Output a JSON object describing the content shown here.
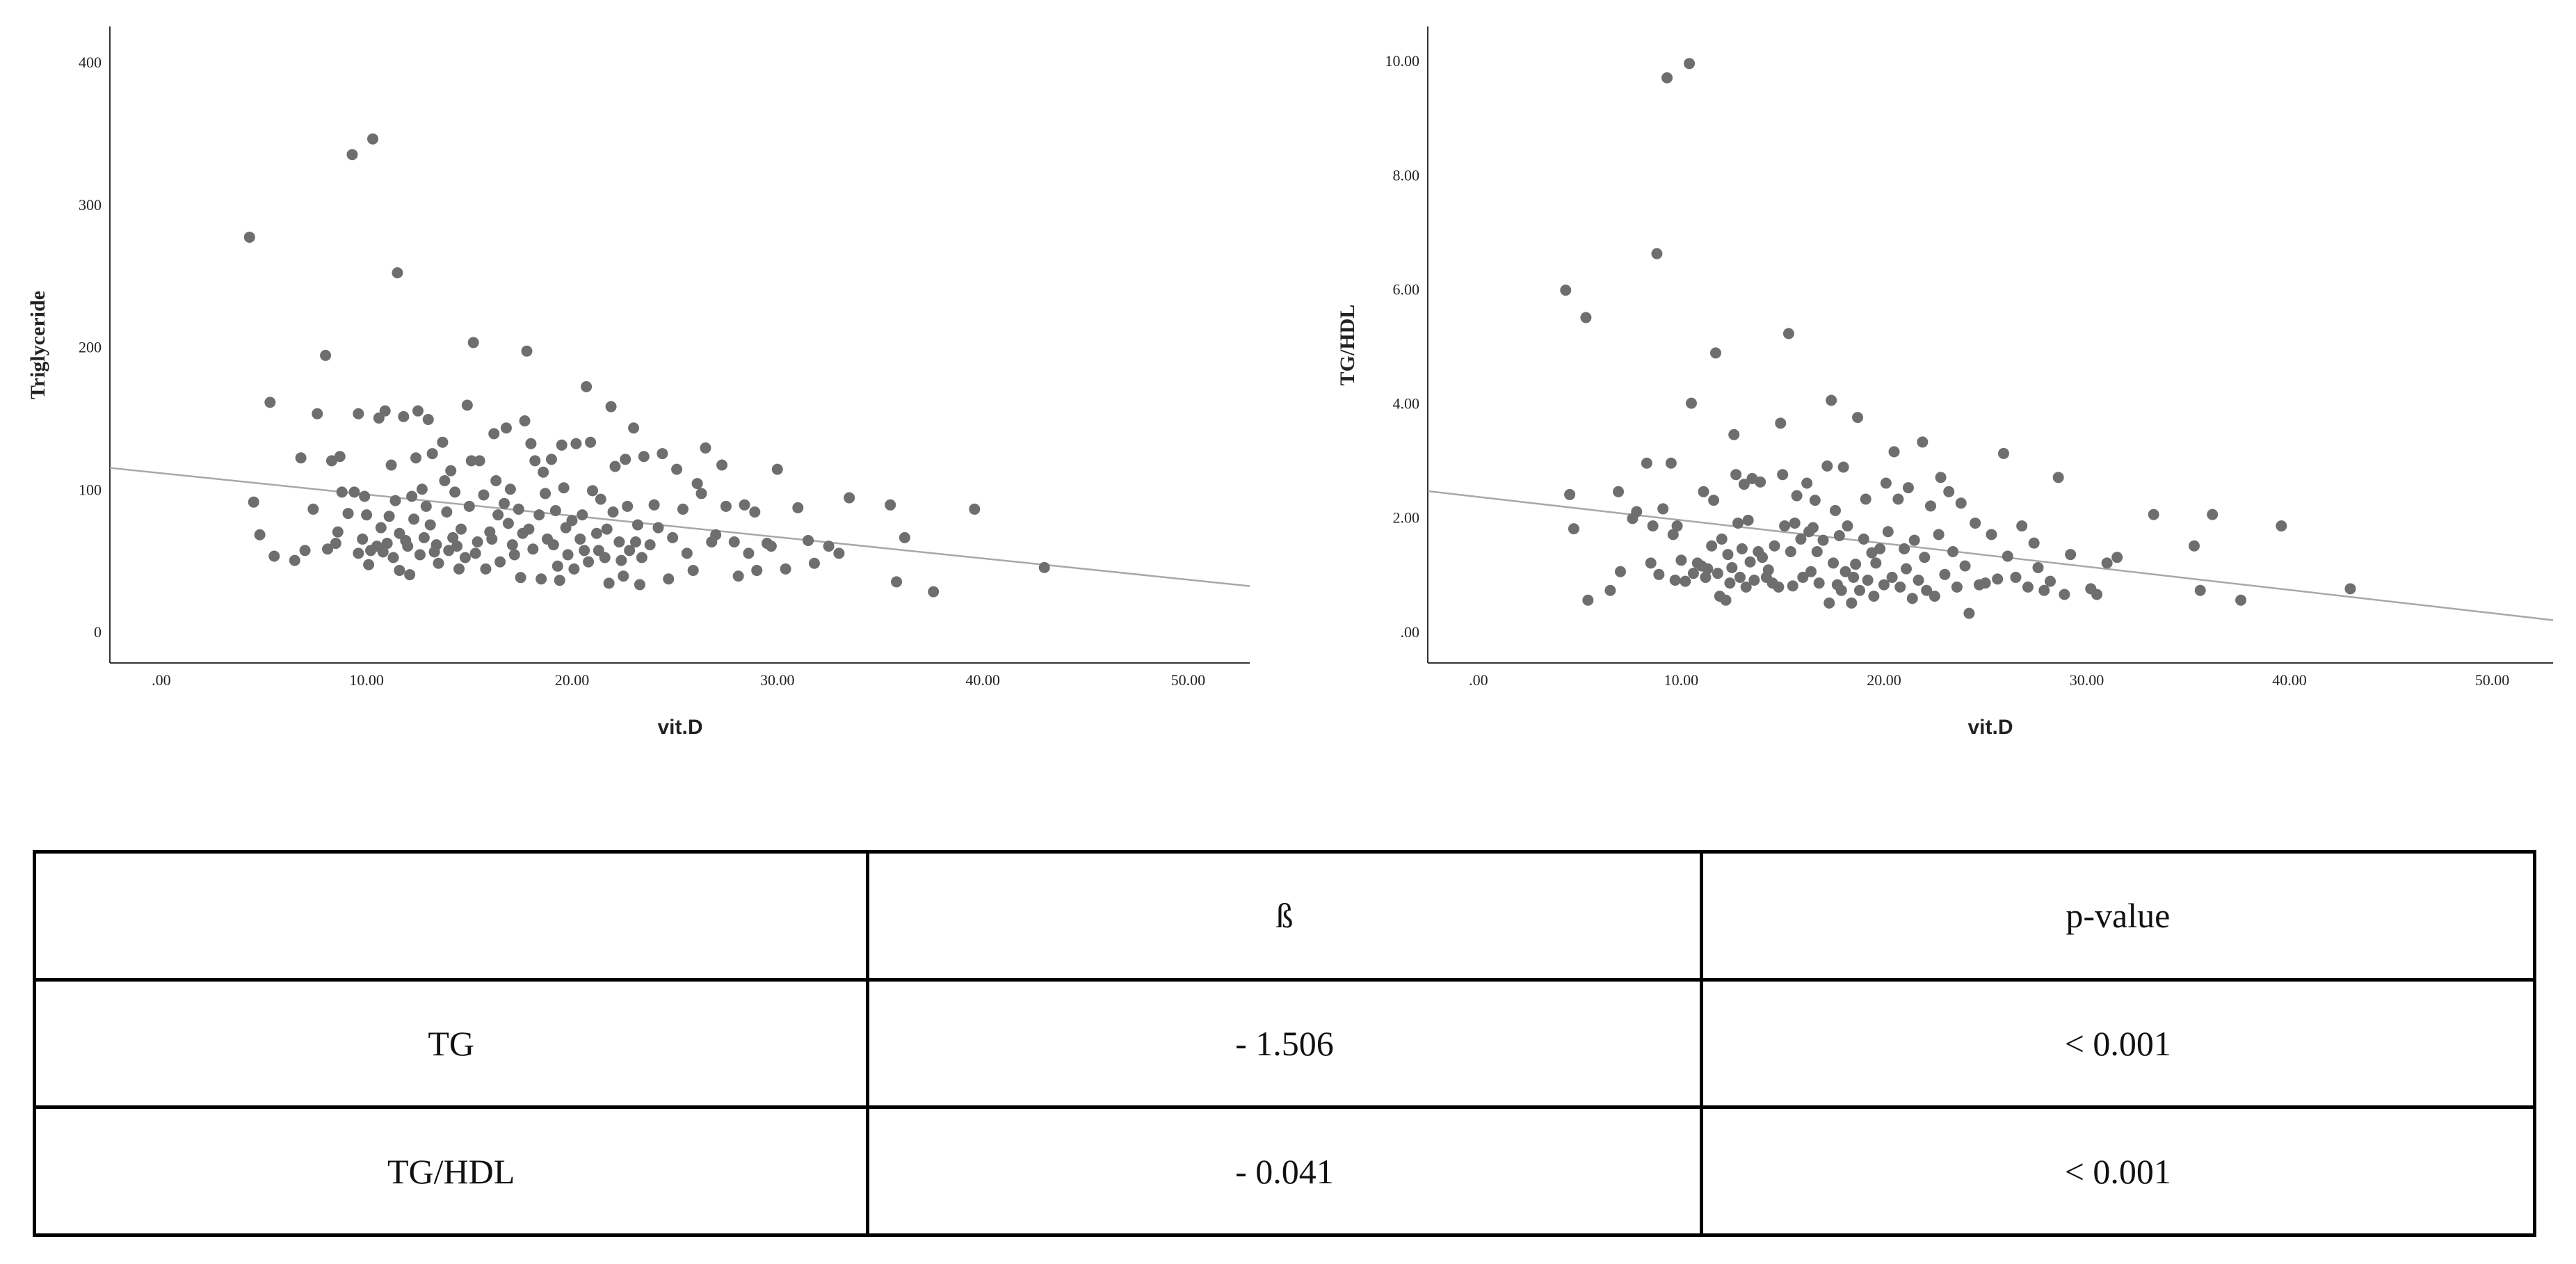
{
  "chart_data": [
    {
      "type": "scatter",
      "xlabel": "vit.D",
      "ylabel": "Triglyceride",
      "xlim": [
        -2.5,
        53
      ],
      "ylim": [
        -22,
        425
      ],
      "x_ticks": [
        ".00",
        "10.00",
        "20.00",
        "30.00",
        "40.00",
        "50.00"
      ],
      "x_tick_values": [
        0,
        10,
        20,
        30,
        40,
        50
      ],
      "y_ticks": [
        "0",
        "100",
        "200",
        "300",
        "400"
      ],
      "y_tick_values": [
        0,
        100,
        200,
        300,
        400
      ],
      "grid": false,
      "point_color": "#6e6e6e",
      "line_color": "#a8a8a8",
      "fit_line": {
        "x": [
          -2.5,
          53
        ],
        "y": [
          115,
          32
        ]
      },
      "points": [
        [
          4.3,
          277
        ],
        [
          4.5,
          91
        ],
        [
          4.8,
          68
        ],
        [
          5.3,
          161
        ],
        [
          5.5,
          53
        ],
        [
          6.5,
          50
        ],
        [
          6.8,
          122
        ],
        [
          7,
          57
        ],
        [
          7.4,
          86
        ],
        [
          7.6,
          153
        ],
        [
          8,
          194
        ],
        [
          8.1,
          58
        ],
        [
          8.3,
          120
        ],
        [
          8.5,
          62
        ],
        [
          8.6,
          70
        ],
        [
          8.7,
          123
        ],
        [
          8.8,
          98
        ],
        [
          9.1,
          83
        ],
        [
          9.3,
          335
        ],
        [
          9.4,
          98
        ],
        [
          9.6,
          153
        ],
        [
          9.6,
          55
        ],
        [
          9.8,
          65
        ],
        [
          9.9,
          95
        ],
        [
          10,
          82
        ],
        [
          10.1,
          47
        ],
        [
          10.2,
          57
        ],
        [
          10.3,
          346
        ],
        [
          10.5,
          60
        ],
        [
          10.6,
          150
        ],
        [
          10.7,
          73
        ],
        [
          10.8,
          56
        ],
        [
          10.9,
          155
        ],
        [
          11,
          62
        ],
        [
          11.1,
          81
        ],
        [
          11.2,
          117
        ],
        [
          11.3,
          52
        ],
        [
          11.4,
          92
        ],
        [
          11.5,
          252
        ],
        [
          11.6,
          43
        ],
        [
          11.6,
          69
        ],
        [
          11.8,
          151
        ],
        [
          11.9,
          64
        ],
        [
          12,
          60
        ],
        [
          12.1,
          40
        ],
        [
          12.2,
          95
        ],
        [
          12.3,
          79
        ],
        [
          12.4,
          122
        ],
        [
          12.5,
          155
        ],
        [
          12.6,
          54
        ],
        [
          12.7,
          100
        ],
        [
          12.8,
          66
        ],
        [
          12.9,
          88
        ],
        [
          13,
          149
        ],
        [
          13.1,
          75
        ],
        [
          13.2,
          125
        ],
        [
          13.3,
          56
        ],
        [
          13.4,
          61
        ],
        [
          13.5,
          48
        ],
        [
          13.7,
          133
        ],
        [
          13.8,
          106
        ],
        [
          13.9,
          84
        ],
        [
          14,
          57
        ],
        [
          14.1,
          113
        ],
        [
          14.2,
          66
        ],
        [
          14.3,
          98
        ],
        [
          14.4,
          60
        ],
        [
          14.5,
          44
        ],
        [
          14.6,
          72
        ],
        [
          14.8,
          52
        ],
        [
          14.9,
          159
        ],
        [
          15,
          88
        ],
        [
          15.1,
          120
        ],
        [
          15.2,
          203
        ],
        [
          15.3,
          55
        ],
        [
          15.4,
          63
        ],
        [
          15.5,
          120
        ],
        [
          15.7,
          96
        ],
        [
          15.8,
          44
        ],
        [
          16,
          70
        ],
        [
          16.1,
          65
        ],
        [
          16.2,
          139
        ],
        [
          16.3,
          106
        ],
        [
          16.4,
          82
        ],
        [
          16.5,
          49
        ],
        [
          16.7,
          90
        ],
        [
          16.8,
          143
        ],
        [
          16.9,
          76
        ],
        [
          17,
          100
        ],
        [
          17.1,
          61
        ],
        [
          17.2,
          54
        ],
        [
          17.4,
          86
        ],
        [
          17.5,
          38
        ],
        [
          17.6,
          69
        ],
        [
          17.7,
          148
        ],
        [
          17.8,
          197
        ],
        [
          17.9,
          72
        ],
        [
          18,
          132
        ],
        [
          18.1,
          58
        ],
        [
          18.2,
          120
        ],
        [
          18.4,
          82
        ],
        [
          18.5,
          37
        ],
        [
          18.6,
          112
        ],
        [
          18.7,
          97
        ],
        [
          18.8,
          65
        ],
        [
          19,
          121
        ],
        [
          19.1,
          61
        ],
        [
          19.2,
          85
        ],
        [
          19.3,
          46
        ],
        [
          19.4,
          36
        ],
        [
          19.5,
          131
        ],
        [
          19.6,
          101
        ],
        [
          19.7,
          73
        ],
        [
          19.8,
          54
        ],
        [
          20,
          78
        ],
        [
          20.1,
          44
        ],
        [
          20.2,
          132
        ],
        [
          20.4,
          65
        ],
        [
          20.5,
          82
        ],
        [
          20.6,
          57
        ],
        [
          20.7,
          172
        ],
        [
          20.8,
          49
        ],
        [
          20.9,
          133
        ],
        [
          21,
          99
        ],
        [
          21.2,
          69
        ],
        [
          21.3,
          57
        ],
        [
          21.4,
          93
        ],
        [
          21.6,
          52
        ],
        [
          21.7,
          72
        ],
        [
          21.8,
          34
        ],
        [
          21.9,
          158
        ],
        [
          22,
          84
        ],
        [
          22.1,
          116
        ],
        [
          22.3,
          63
        ],
        [
          22.4,
          50
        ],
        [
          22.5,
          39
        ],
        [
          22.6,
          121
        ],
        [
          22.7,
          88
        ],
        [
          22.8,
          57
        ],
        [
          23,
          143
        ],
        [
          23.1,
          63
        ],
        [
          23.2,
          75
        ],
        [
          23.3,
          33
        ],
        [
          23.4,
          52
        ],
        [
          23.5,
          123
        ],
        [
          23.8,
          61
        ],
        [
          24,
          89
        ],
        [
          24.2,
          73
        ],
        [
          24.4,
          125
        ],
        [
          24.7,
          37
        ],
        [
          24.9,
          66
        ],
        [
          25.1,
          114
        ],
        [
          25.4,
          86
        ],
        [
          25.6,
          55
        ],
        [
          25.9,
          43
        ],
        [
          26.1,
          104
        ],
        [
          26.3,
          97
        ],
        [
          26.5,
          129
        ],
        [
          26.8,
          63
        ],
        [
          27,
          68
        ],
        [
          27.3,
          117
        ],
        [
          27.5,
          88
        ],
        [
          27.9,
          63
        ],
        [
          28.1,
          39
        ],
        [
          28.4,
          89
        ],
        [
          28.6,
          55
        ],
        [
          28.9,
          84
        ],
        [
          29,
          43
        ],
        [
          29.5,
          62
        ],
        [
          29.7,
          60
        ],
        [
          30,
          114
        ],
        [
          30.4,
          44
        ],
        [
          31,
          87
        ],
        [
          31.5,
          64
        ],
        [
          31.8,
          48
        ],
        [
          32.5,
          60
        ],
        [
          33,
          55
        ],
        [
          33.5,
          94
        ],
        [
          35.5,
          89
        ],
        [
          35.8,
          35
        ],
        [
          36.2,
          66
        ],
        [
          37.6,
          28
        ],
        [
          39.6,
          86
        ],
        [
          43,
          45
        ]
      ]
    },
    {
      "type": "scatter",
      "xlabel": "vit.D",
      "ylabel": "TG/HDL",
      "xlim": [
        -2.5,
        53
      ],
      "ylim": [
        -0.55,
        10.6
      ],
      "x_ticks": [
        ".00",
        "10.00",
        "20.00",
        "30.00",
        "40.00",
        "50.00"
      ],
      "x_tick_values": [
        0,
        10,
        20,
        30,
        40,
        50
      ],
      "y_ticks": [
        ".00",
        "2.00",
        "4.00",
        "6.00",
        "8.00",
        "10.00"
      ],
      "y_tick_values": [
        0,
        2,
        4,
        6,
        8,
        10
      ],
      "grid": false,
      "point_color": "#6e6e6e",
      "line_color": "#a8a8a8",
      "fit_line": {
        "x": [
          -2.5,
          53
        ],
        "y": [
          2.46,
          0.2
        ]
      },
      "points": [
        [
          4.3,
          5.98
        ],
        [
          4.5,
          2.4
        ],
        [
          4.7,
          1.8
        ],
        [
          5.3,
          5.5
        ],
        [
          5.4,
          0.55
        ],
        [
          6.5,
          0.72
        ],
        [
          6.9,
          2.45
        ],
        [
          7,
          1.05
        ],
        [
          7.6,
          1.98
        ],
        [
          7.8,
          2.1
        ],
        [
          8.3,
          2.95
        ],
        [
          8.5,
          1.2
        ],
        [
          8.6,
          1.85
        ],
        [
          8.8,
          6.62
        ],
        [
          8.9,
          1.0
        ],
        [
          9.1,
          2.15
        ],
        [
          9.3,
          9.7
        ],
        [
          9.5,
          2.95
        ],
        [
          9.6,
          1.7
        ],
        [
          9.7,
          0.9
        ],
        [
          9.8,
          1.85
        ],
        [
          10,
          1.25
        ],
        [
          10.2,
          0.88
        ],
        [
          10.4,
          9.95
        ],
        [
          10.5,
          4.0
        ],
        [
          10.6,
          1.02
        ],
        [
          10.8,
          1.2
        ],
        [
          11,
          1.15
        ],
        [
          11.1,
          2.45
        ],
        [
          11.2,
          0.95
        ],
        [
          11.3,
          1.1
        ],
        [
          11.5,
          1.5
        ],
        [
          11.6,
          2.3
        ],
        [
          11.7,
          4.88
        ],
        [
          11.8,
          1.02
        ],
        [
          11.9,
          0.62
        ],
        [
          12,
          1.62
        ],
        [
          12.2,
          0.55
        ],
        [
          12.3,
          1.35
        ],
        [
          12.4,
          0.85
        ],
        [
          12.5,
          1.12
        ],
        [
          12.6,
          3.45
        ],
        [
          12.7,
          2.75
        ],
        [
          12.8,
          1.9
        ],
        [
          12.9,
          0.95
        ],
        [
          13,
          1.45
        ],
        [
          13.1,
          2.58
        ],
        [
          13.2,
          0.78
        ],
        [
          13.3,
          1.95
        ],
        [
          13.4,
          1.22
        ],
        [
          13.5,
          2.68
        ],
        [
          13.6,
          0.9
        ],
        [
          13.8,
          1.4
        ],
        [
          13.9,
          2.62
        ],
        [
          14,
          1.3
        ],
        [
          14.2,
          0.95
        ],
        [
          14.3,
          1.08
        ],
        [
          14.5,
          0.85
        ],
        [
          14.6,
          1.5
        ],
        [
          14.8,
          0.78
        ],
        [
          14.9,
          3.65
        ],
        [
          15,
          2.75
        ],
        [
          15.1,
          1.85
        ],
        [
          15.3,
          5.22
        ],
        [
          15.4,
          1.4
        ],
        [
          15.5,
          0.8
        ],
        [
          15.6,
          1.9
        ],
        [
          15.7,
          2.38
        ],
        [
          15.9,
          1.62
        ],
        [
          16,
          0.95
        ],
        [
          16.2,
          2.6
        ],
        [
          16.3,
          1.75
        ],
        [
          16.4,
          1.05
        ],
        [
          16.5,
          1.82
        ],
        [
          16.6,
          2.3
        ],
        [
          16.7,
          1.4
        ],
        [
          16.8,
          0.85
        ],
        [
          17,
          1.6
        ],
        [
          17.2,
          2.9
        ],
        [
          17.3,
          0.5
        ],
        [
          17.4,
          4.05
        ],
        [
          17.5,
          1.2
        ],
        [
          17.6,
          2.12
        ],
        [
          17.7,
          0.82
        ],
        [
          17.8,
          1.68
        ],
        [
          17.9,
          0.72
        ],
        [
          18,
          2.88
        ],
        [
          18.1,
          1.05
        ],
        [
          18.2,
          1.85
        ],
        [
          18.4,
          0.5
        ],
        [
          18.5,
          0.95
        ],
        [
          18.6,
          1.18
        ],
        [
          18.7,
          3.75
        ],
        [
          18.8,
          0.72
        ],
        [
          19,
          1.62
        ],
        [
          19.1,
          2.32
        ],
        [
          19.2,
          0.9
        ],
        [
          19.4,
          1.38
        ],
        [
          19.5,
          0.62
        ],
        [
          19.6,
          1.2
        ],
        [
          19.8,
          1.45
        ],
        [
          20,
          0.82
        ],
        [
          20.1,
          2.6
        ],
        [
          20.2,
          1.75
        ],
        [
          20.4,
          0.95
        ],
        [
          20.5,
          3.15
        ],
        [
          20.7,
          2.32
        ],
        [
          20.8,
          0.78
        ],
        [
          21,
          1.45
        ],
        [
          21.1,
          1.1
        ],
        [
          21.2,
          2.52
        ],
        [
          21.4,
          0.58
        ],
        [
          21.5,
          1.6
        ],
        [
          21.7,
          0.9
        ],
        [
          21.9,
          3.32
        ],
        [
          22,
          1.3
        ],
        [
          22.1,
          0.72
        ],
        [
          22.3,
          2.2
        ],
        [
          22.5,
          0.62
        ],
        [
          22.7,
          1.7
        ],
        [
          22.8,
          2.7
        ],
        [
          23,
          1.0
        ],
        [
          23.2,
          2.45
        ],
        [
          23.4,
          1.4
        ],
        [
          23.6,
          0.78
        ],
        [
          23.8,
          2.25
        ],
        [
          24,
          1.15
        ],
        [
          24.2,
          0.32
        ],
        [
          24.5,
          1.9
        ],
        [
          24.7,
          0.82
        ],
        [
          25,
          0.85
        ],
        [
          25.3,
          1.7
        ],
        [
          25.6,
          0.92
        ],
        [
          25.9,
          3.12
        ],
        [
          26.1,
          1.32
        ],
        [
          26.5,
          0.95
        ],
        [
          26.8,
          1.85
        ],
        [
          27.1,
          0.78
        ],
        [
          27.4,
          1.55
        ],
        [
          27.6,
          1.12
        ],
        [
          27.9,
          0.72
        ],
        [
          28.2,
          0.88
        ],
        [
          28.6,
          2.7
        ],
        [
          28.9,
          0.65
        ],
        [
          29.2,
          1.35
        ],
        [
          30.2,
          0.75
        ],
        [
          30.5,
          0.65
        ],
        [
          31,
          1.2
        ],
        [
          31.5,
          1.3
        ],
        [
          33.3,
          2.05
        ],
        [
          35.3,
          1.5
        ],
        [
          35.6,
          0.72
        ],
        [
          36.2,
          2.05
        ],
        [
          37.6,
          0.55
        ],
        [
          39.6,
          1.85
        ],
        [
          43,
          0.75
        ]
      ]
    }
  ],
  "table": {
    "header": [
      "",
      "ß",
      "p-value"
    ],
    "rows": [
      [
        "TG",
        "- 1.506",
        "< 0.001"
      ],
      [
        "TG/HDL",
        "- 0.041",
        "< 0.001"
      ]
    ]
  }
}
